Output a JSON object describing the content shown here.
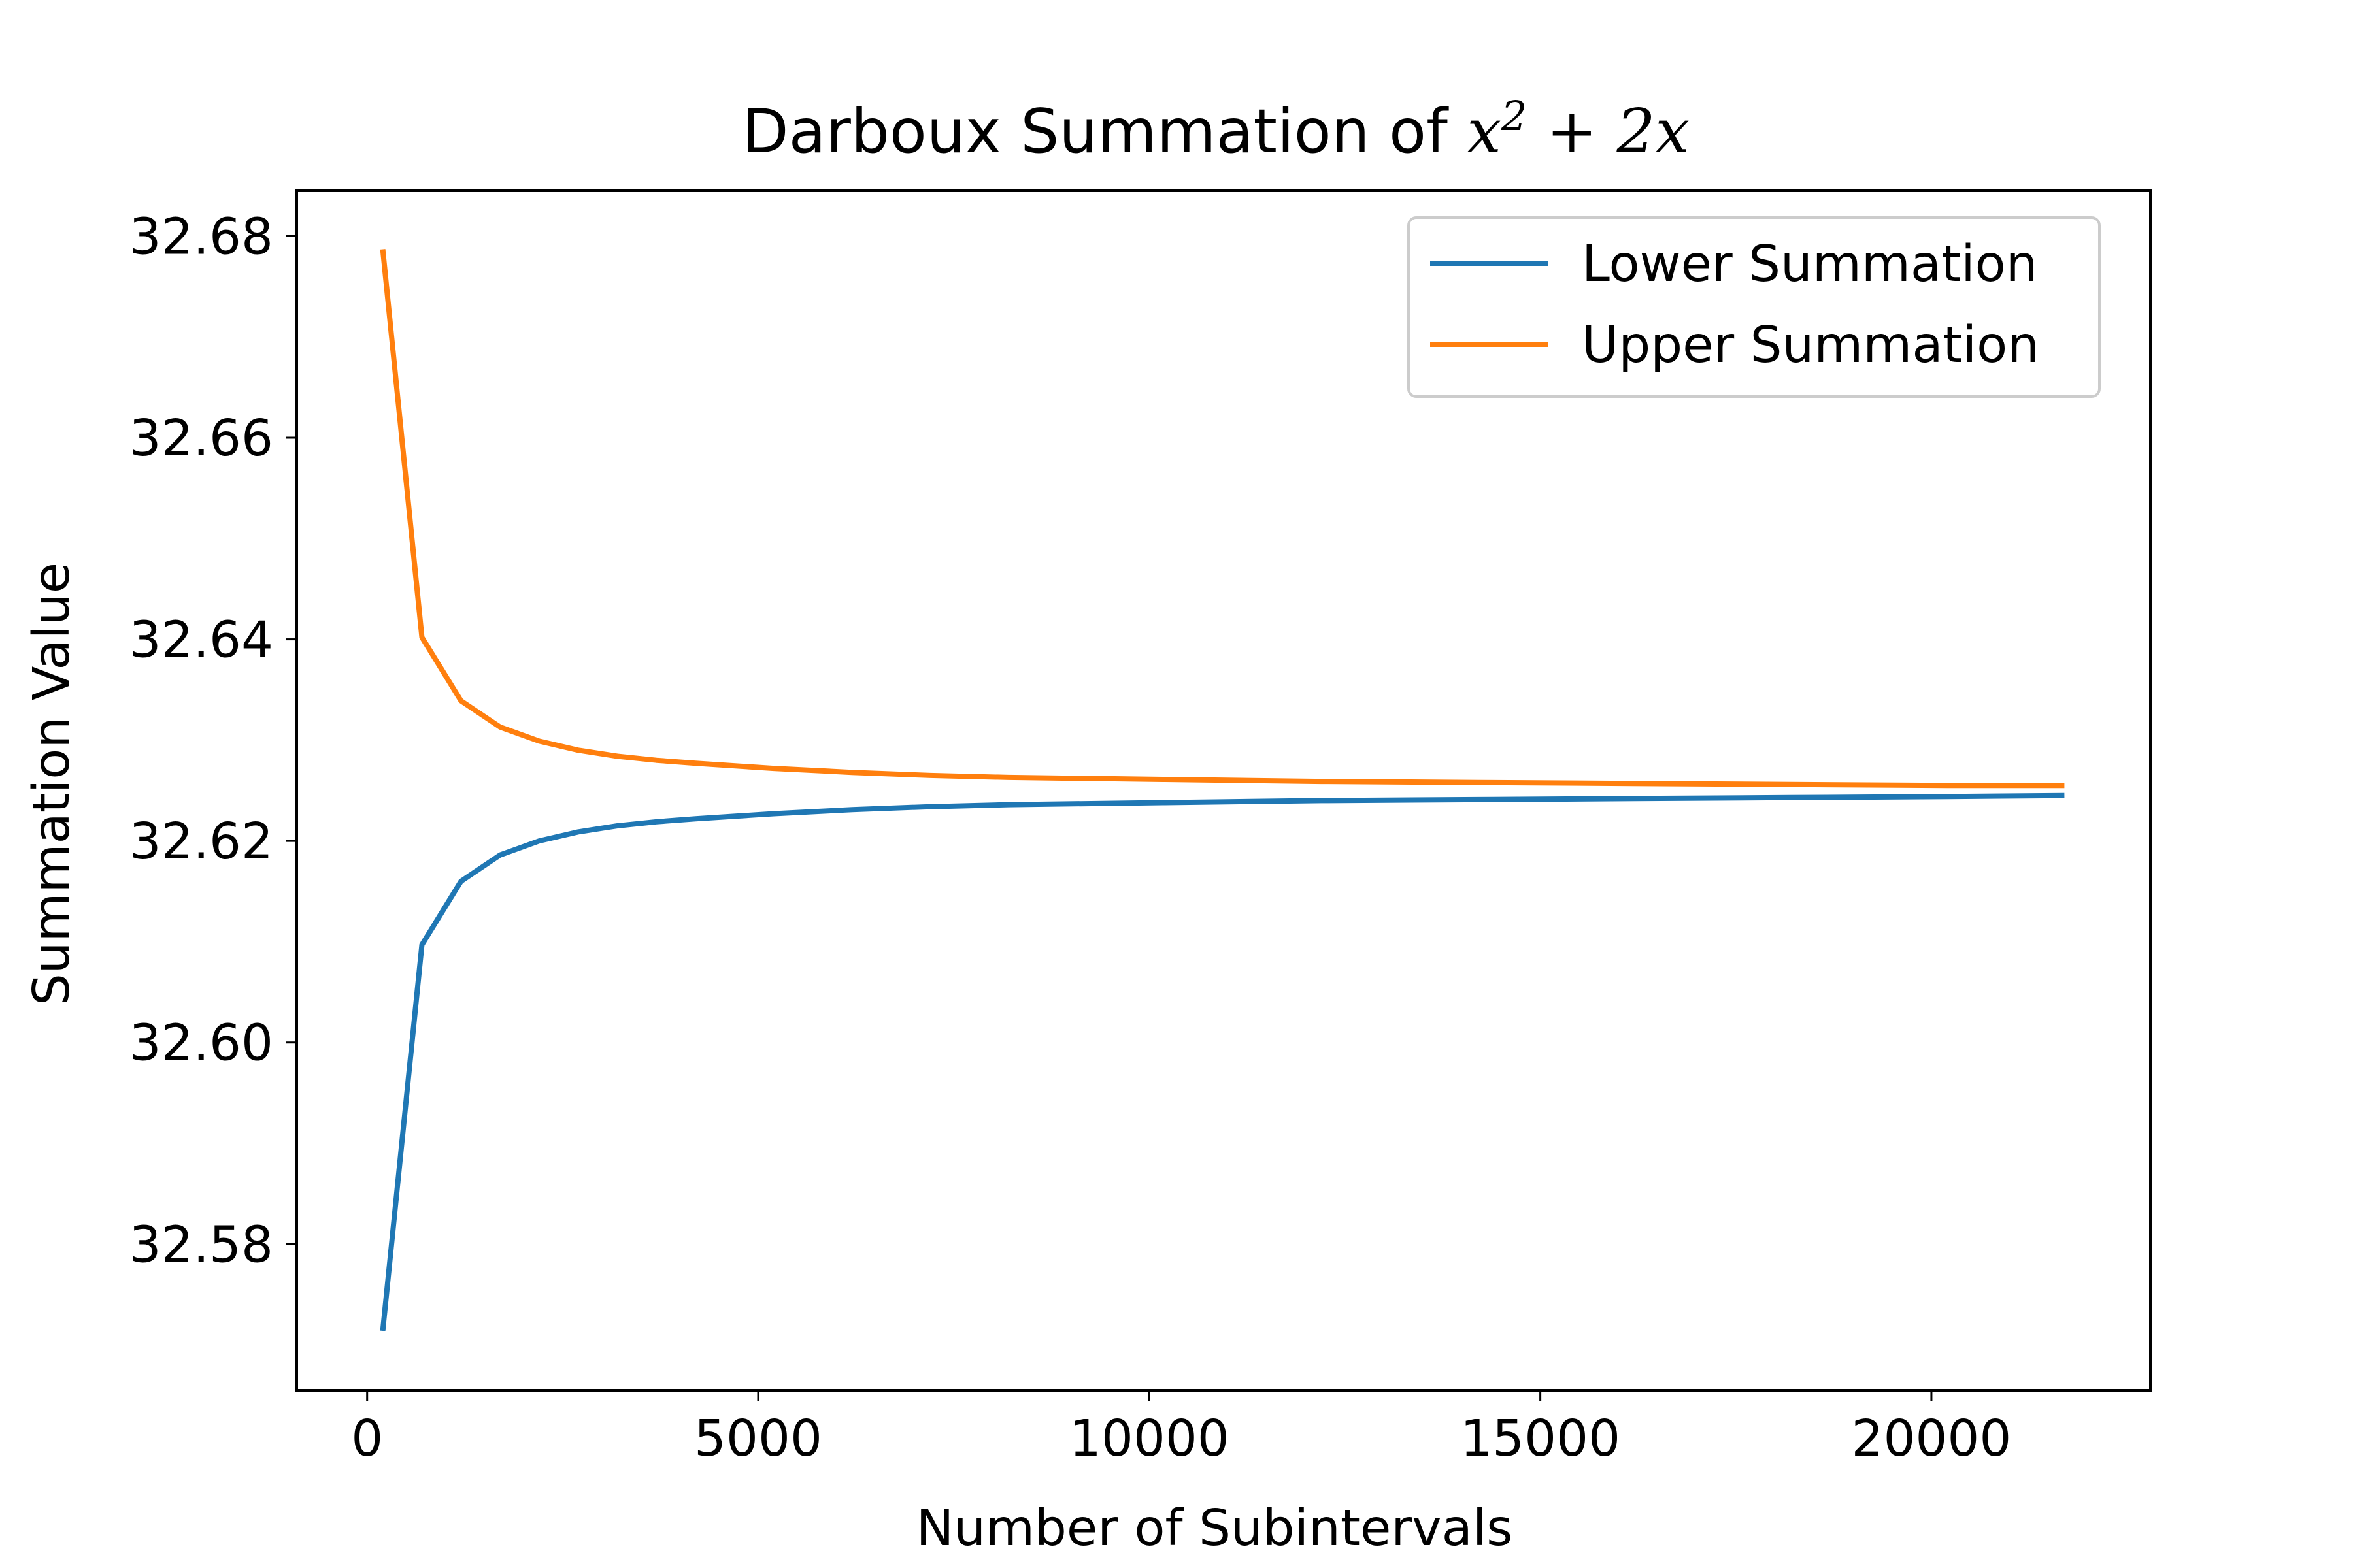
{
  "chart_data": {
    "type": "line",
    "title": {
      "prefix": "Darboux Summation of ",
      "math_base": "x",
      "math_exponent": "2",
      "math_rest": " + 2x"
    },
    "xlabel": "Number of Subintervals",
    "ylabel": "Summation Value",
    "xlim": [
      -900,
      22800
    ],
    "ylim": [
      32.5655,
      32.6845
    ],
    "xticks": [
      0,
      5000,
      10000,
      15000,
      20000
    ],
    "xtick_labels": [
      "0",
      "5000",
      "10000",
      "15000",
      "20000"
    ],
    "yticks": [
      32.58,
      32.6,
      32.62,
      32.64,
      32.66,
      32.68
    ],
    "ytick_labels": [
      "32.58",
      "32.60",
      "32.62",
      "32.64",
      "32.66",
      "32.68"
    ],
    "grid": false,
    "legend_position": "top-right",
    "x": [
      200,
      700,
      1200,
      1700,
      2200,
      2700,
      3200,
      3700,
      4200,
      5200,
      6200,
      7200,
      8200,
      10200,
      12200,
      14200,
      16200,
      18200,
      20200,
      21700
    ],
    "series": [
      {
        "name": "Lower Summation",
        "color": "#1f77b4",
        "values": [
          32.5714,
          32.6097,
          32.616,
          32.6186,
          32.62,
          32.6209,
          32.6215,
          32.6219,
          32.6222,
          32.6227,
          32.6231,
          32.6234,
          32.6236,
          32.6238,
          32.624,
          32.6241,
          32.6242,
          32.6243,
          32.6244,
          32.6245
        ]
      },
      {
        "name": "Upper Summation",
        "color": "#ff7f0e",
        "values": [
          32.6787,
          32.6402,
          32.6339,
          32.6313,
          32.6299,
          32.629,
          32.6284,
          32.628,
          32.6277,
          32.6272,
          32.6268,
          32.6265,
          32.6263,
          32.6261,
          32.6259,
          32.6258,
          32.6257,
          32.6256,
          32.6255,
          32.6255
        ]
      }
    ]
  }
}
